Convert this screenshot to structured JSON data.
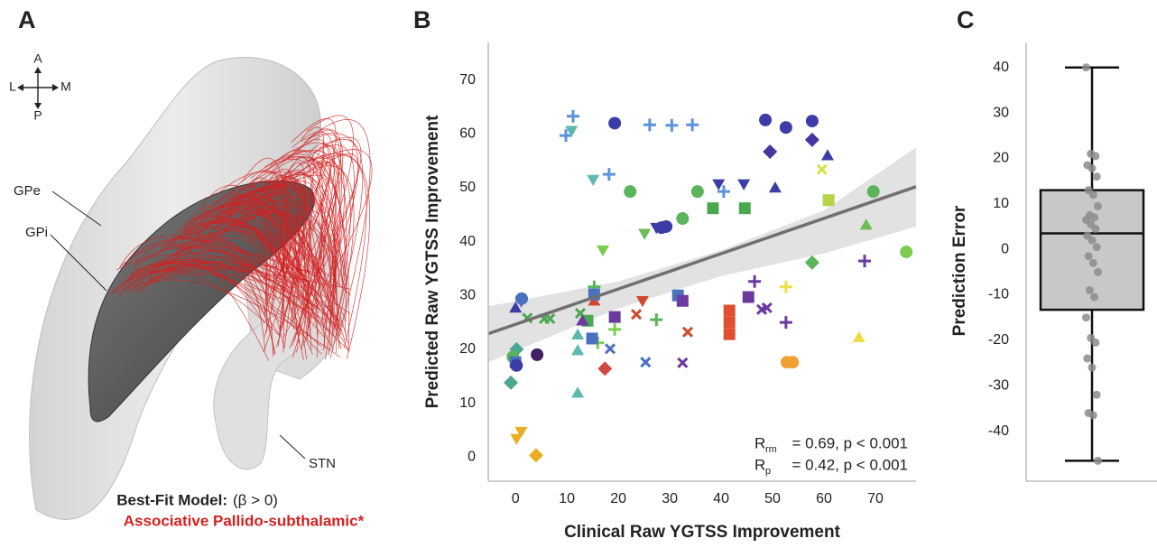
{
  "panel_a": {
    "label": "A",
    "orientation": {
      "anterior": "A",
      "lateral": "L",
      "medial": "M",
      "posterior": "P"
    },
    "structures": [
      "GPe",
      "GPi",
      "STN"
    ],
    "caption": {
      "model": "Best-Fit Model:",
      "condition": "(β > 0)",
      "tract": "Associative Pallido-subthalamic*"
    }
  },
  "chart_data": [
    {
      "type": "scatter",
      "panel_label": "B",
      "x_label": "Clinical Raw YGTSS Improvement",
      "y_label": "Predicted Raw YGTSS Improvement",
      "xlim": [
        -5.3,
        77.9
      ],
      "ylim": [
        -4.5,
        77
      ],
      "xticks": [
        0,
        10,
        20,
        30,
        40,
        50,
        60,
        70
      ],
      "yticks": [
        0,
        10,
        20,
        30,
        40,
        50,
        60,
        70
      ],
      "x": [
        11.2,
        9.8,
        10.9,
        19.3,
        26.1,
        30.4,
        34.4,
        48.6,
        52.6,
        57.7,
        57.7,
        49.5,
        60.7,
        50.5,
        59.6,
        39.5,
        44.4,
        40.5,
        18.2,
        15.1,
        22.3,
        35.4,
        69.6,
        76,
        38.4,
        44.6,
        60.9,
        68.2,
        32.5,
        27.4,
        28.4,
        29.3,
        25.1,
        17,
        57.7,
        67.9,
        46.5,
        52.6,
        45.3,
        31.6,
        32.5,
        24.7,
        23.5,
        27.4,
        19.3,
        15.3,
        15.3,
        15.3,
        14,
        12.6,
        13,
        6.7,
        5.6,
        2.3,
        1.1,
        0,
        1.2,
        41.6,
        41.6,
        41.6,
        47.9,
        48.9,
        52.6,
        33.5,
        66.8,
        19.3,
        16,
        12.1,
        14.9,
        18.4,
        12.1,
        0.2,
        -0.5,
        0,
        0.2,
        4.2,
        17.4,
        25.3,
        32.5,
        52.8,
        53.9,
        -0.9,
        12.1,
        1.1,
        0.2,
        4
      ],
      "y": [
        63.3,
        59.7,
        60.6,
        62,
        61.7,
        61.6,
        61.7,
        62.6,
        61.2,
        62.4,
        58.9,
        56.7,
        56,
        50,
        53.4,
        50.7,
        50.7,
        49.3,
        52.5,
        51.5,
        49.3,
        49.3,
        49.3,
        38.1,
        46.2,
        46.2,
        47.7,
        43.1,
        44.3,
        42.6,
        42.6,
        42.8,
        41.5,
        38.4,
        36.1,
        36.4,
        32.6,
        31.6,
        29.7,
        30,
        29,
        29,
        26.5,
        25.5,
        26,
        29,
        31.6,
        30.2,
        25.3,
        26.7,
        25.3,
        25.7,
        25.7,
        25.8,
        28.9,
        27.7,
        29.4,
        27.2,
        25,
        22.8,
        27.4,
        27.7,
        25,
        23.2,
        22.2,
        23.7,
        21.2,
        22.7,
        22,
        20.1,
        19.8,
        20,
        18.6,
        17.6,
        17,
        19,
        16.4,
        17.6,
        17.5,
        17.6,
        17.6,
        13.8,
        11.9,
        4.7,
        3.4,
        0.3
      ],
      "colors": [
        "#5b93dc",
        "#5b93dc",
        "#5fb8b0",
        "#3c3ca8",
        "#5b93dc",
        "#5b93dc",
        "#5b93dc",
        "#3c3ca8",
        "#3c3ca8",
        "#3c3ca8",
        "#4a34a0",
        "#4a34a0",
        "#3c3ca8",
        "#3c3ca8",
        "#d6e24a",
        "#3c3ca8",
        "#3c3ca8",
        "#5b93dc",
        "#5b93dc",
        "#5fb8b0",
        "#5ab45a",
        "#5ab45a",
        "#5ab45a",
        "#7ccc50",
        "#4aa850",
        "#4aa850",
        "#b5d448",
        "#6cbc58",
        "#5ab45a",
        "#3c3ca8",
        "#3c3ca8",
        "#3c3ca8",
        "#6cbc58",
        "#7ccc50",
        "#5ab45a",
        "#6a3aa0",
        "#6a3aa0",
        "#ece045",
        "#6a3aa0",
        "#4a70c0",
        "#6a3aa0",
        "#d04a30",
        "#d04a30",
        "#5ab45a",
        "#6a3aa0",
        "#d04a30",
        "#5ab45a",
        "#4a70c0",
        "#4aa850",
        "#4aa850",
        "#6a3aa0",
        "#4aa850",
        "#4aa850",
        "#4aa850",
        "#4a70c0",
        "#3c3ca8",
        "#4a70c0",
        "#e05030",
        "#e05030",
        "#e05030",
        "#6a3aa0",
        "#6a3aa0",
        "#6a3aa0",
        "#d04a30",
        "#ece045",
        "#7ccc50",
        "#7ccc50",
        "#5fb8b0",
        "#4a70c0",
        "#4a70c0",
        "#5fb8b0",
        "#4aa890",
        "#5ab45a",
        "#4a70c0",
        "#3c3ca8",
        "#402060",
        "#d04a40",
        "#4a70c0",
        "#6a3aa0",
        "#f0a030",
        "#f0a030",
        "#4aa890",
        "#5fb8b0",
        "#e8b020",
        "#e8b020",
        "#e8b020"
      ],
      "markers": [
        "plus",
        "plus",
        "tri-down",
        "circle",
        "plus",
        "plus",
        "plus",
        "circle",
        "circle",
        "circle",
        "diamond",
        "diamond",
        "tri-up",
        "tri-up",
        "x",
        "tri-down",
        "tri-down",
        "plus",
        "plus",
        "tri-down",
        "circle",
        "circle",
        "circle",
        "circle",
        "square",
        "square",
        "square",
        "tri-up",
        "circle",
        "tri-down",
        "circle",
        "circle",
        "tri-down",
        "tri-down",
        "diamond",
        "plus",
        "plus",
        "plus",
        "square",
        "square",
        "square",
        "tri-down",
        "x",
        "plus",
        "square",
        "tri-up",
        "plus",
        "square",
        "square",
        "x",
        "tri-up",
        "x",
        "x",
        "x",
        "tri-down",
        "tri-up",
        "circle",
        "square",
        "square",
        "square",
        "x",
        "x",
        "plus",
        "x",
        "tri-up",
        "plus",
        "plus",
        "tri-up",
        "square",
        "x",
        "tri-up",
        "diamond",
        "circle",
        "square",
        "circle",
        "circle",
        "diamond",
        "x",
        "x",
        "circle",
        "circle",
        "diamond",
        "tri-up",
        "tri-down",
        "tri-down",
        "diamond"
      ],
      "fit": {
        "x": [
          -5.3,
          77.9
        ],
        "y": [
          22.9,
          50.2
        ],
        "color": "#707070"
      },
      "band": {
        "x": [
          -5.3,
          20,
          40,
          60,
          77.9
        ],
        "upper": [
          28,
          32.6,
          38.4,
          45.8,
          57.5
        ],
        "lower": [
          17.6,
          27.6,
          33.6,
          37.8,
          42.8
        ],
        "color": "#e2e2e2"
      },
      "annotations": [
        {
          "symbol": "R",
          "subscript": "rm",
          "text": "= 0.69, p < 0.001"
        },
        {
          "symbol": "R",
          "subscript": "p",
          "text": "= 0.42, p < 0.001"
        }
      ]
    },
    {
      "type": "box",
      "panel_label": "C",
      "y_label": "Prediction Error",
      "ylim": [
        -51,
        45.5
      ],
      "yticks": [
        -40,
        -30,
        -20,
        -10,
        0,
        10,
        20,
        30,
        40
      ],
      "whisker_low": -46.5,
      "q1": -13.3,
      "median": 3.5,
      "q3": 13,
      "whisker_high": 40,
      "box_color": "#c8c8c8",
      "point_color": "#8c8c8c",
      "points": [
        40,
        21,
        20.5,
        18.5,
        17.8,
        16,
        13,
        12,
        9.5,
        7.5,
        7,
        6.5,
        5.5,
        4.5,
        3,
        2,
        0.5,
        -1.5,
        -3,
        -5,
        -9,
        -10.5,
        -15,
        -19.5,
        -20.5,
        -24,
        -26,
        -32,
        -36,
        -36.5,
        -46.5
      ]
    }
  ]
}
